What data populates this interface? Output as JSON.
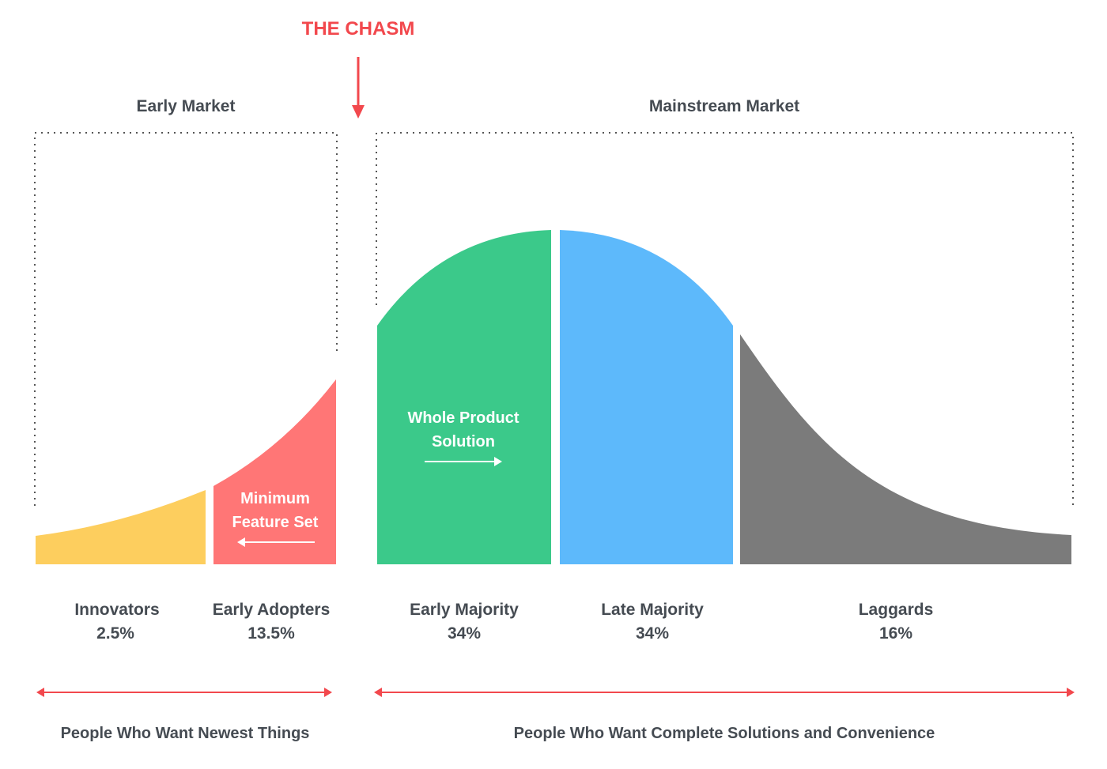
{
  "diagram": {
    "title": "THE CHASM",
    "groups": {
      "early_market": "Early Market",
      "mainstream_market": "Mainstream Market"
    },
    "inner_labels": {
      "minimum_line1": "Minimum",
      "minimum_line2": "Feature Set",
      "whole_line1": "Whole Product",
      "whole_line2": "Solution"
    },
    "segments": [
      {
        "name": "Innovators",
        "value": "2.5%",
        "color": "#fdce5e"
      },
      {
        "name": "Early Adopters",
        "value": "13.5%",
        "color": "#ff7676"
      },
      {
        "name": "Early Majority",
        "value": "34%",
        "color": "#3bc98a"
      },
      {
        "name": "Late Majority",
        "value": "34%",
        "color": "#5db9fb"
      },
      {
        "name": "Laggards",
        "value": "16%",
        "color": "#7b7b7b"
      }
    ],
    "bottom": {
      "left": "People Who Want Newest Things",
      "right": "People Who Want Complete Solutions and Convenience"
    },
    "colors": {
      "accent": "#f2484d",
      "text": "#454b52",
      "dotted_border": "#555555"
    }
  }
}
